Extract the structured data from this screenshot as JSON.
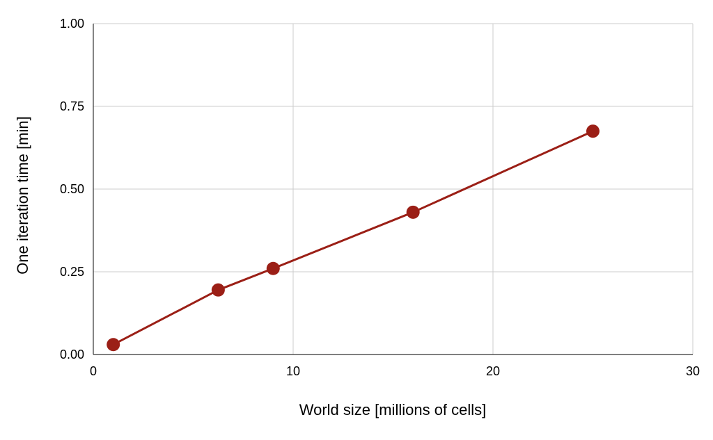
{
  "colors": {
    "series": "#9b1f16",
    "grid": "#cccccc",
    "axis": "#333333",
    "text": "#000000",
    "background": "#ffffff"
  },
  "chart_data": {
    "type": "line",
    "title": "",
    "xlabel": "World size [millions of cells]",
    "ylabel": "One iteration time [min]",
    "xlim": [
      0,
      30
    ],
    "ylim": [
      0,
      1.0
    ],
    "x_ticks": [
      0,
      10,
      20,
      30
    ],
    "x_tick_labels": [
      "0",
      "10",
      "20",
      "30"
    ],
    "y_ticks": [
      0,
      0.25,
      0.5,
      0.75,
      1.0
    ],
    "y_tick_labels": [
      "0.00",
      "0.25",
      "0.50",
      "0.75",
      "1.00"
    ],
    "grid": true,
    "legend": "none",
    "series": [
      {
        "x": [
          1,
          6.25,
          9,
          16,
          25
        ],
        "y": [
          0.03,
          0.195,
          0.26,
          0.43,
          0.675
        ],
        "color": "#9b1f16",
        "markers": true
      }
    ]
  }
}
